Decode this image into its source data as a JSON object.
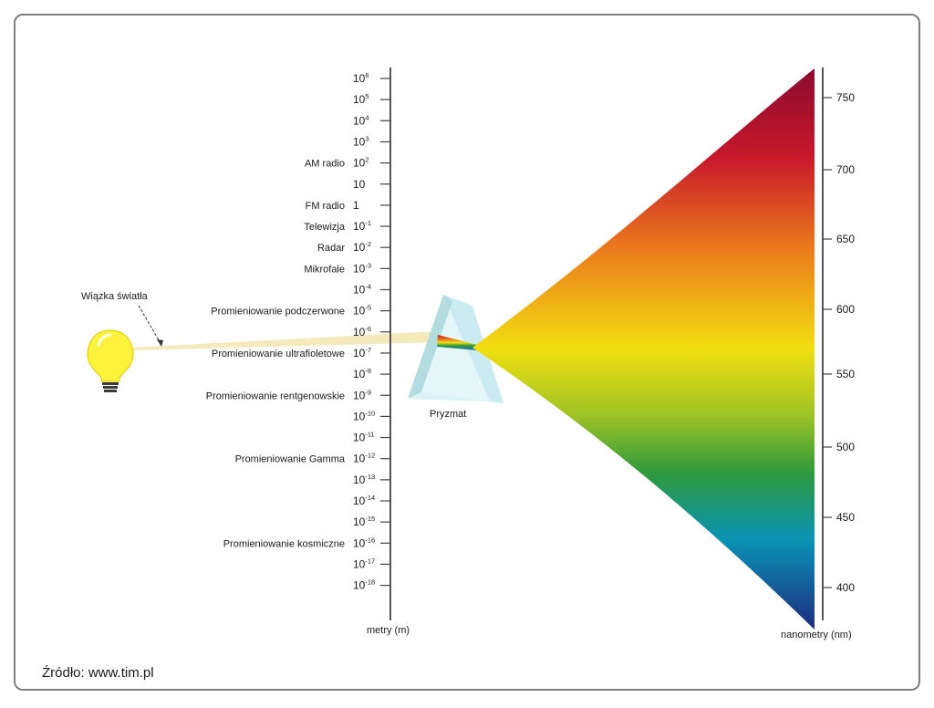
{
  "diagram": {
    "beam_label": "Wiązka światła",
    "prism_label": "Pryzmat",
    "source_text": "Źródło: www.tim.pl",
    "colors": {
      "frame": "#7f7f7f",
      "bulb": "#fff23a",
      "beam": "#f2e6b0",
      "prism": "#bfe8ee",
      "spectrum_red": "#8b0a2e",
      "spectrum_yellow": "#f2df10",
      "spectrum_green": "#2f9a3c",
      "spectrum_cyan": "#0a93b5",
      "spectrum_blue": "#1e2c80"
    }
  },
  "meters_axis": {
    "title": "metry (m)",
    "ticks": [
      {
        "base": "10",
        "exp": "6"
      },
      {
        "base": "10",
        "exp": "5"
      },
      {
        "base": "10",
        "exp": "4"
      },
      {
        "base": "10",
        "exp": "3"
      },
      {
        "base": "10",
        "exp": "2"
      },
      {
        "base": "10",
        "exp": ""
      },
      {
        "base": "1",
        "exp": ""
      },
      {
        "base": "10",
        "exp": "-1"
      },
      {
        "base": "10",
        "exp": "-2"
      },
      {
        "base": "10",
        "exp": "-3"
      },
      {
        "base": "10",
        "exp": "-4"
      },
      {
        "base": "10",
        "exp": "-5"
      },
      {
        "base": "10",
        "exp": "-6"
      },
      {
        "base": "10",
        "exp": "-7"
      },
      {
        "base": "10",
        "exp": "-8"
      },
      {
        "base": "10",
        "exp": "-9"
      },
      {
        "base": "10",
        "exp": "-10"
      },
      {
        "base": "10",
        "exp": "-11"
      },
      {
        "base": "10",
        "exp": "-12"
      },
      {
        "base": "10",
        "exp": "-13"
      },
      {
        "base": "10",
        "exp": "-14"
      },
      {
        "base": "10",
        "exp": "-15"
      },
      {
        "base": "10",
        "exp": "-16"
      },
      {
        "base": "10",
        "exp": "-17"
      },
      {
        "base": "10",
        "exp": "-18"
      }
    ],
    "labels": [
      {
        "text": "AM radio",
        "tick_index": 4
      },
      {
        "text": "FM radio",
        "tick_index": 6
      },
      {
        "text": "Telewizja",
        "tick_index": 7
      },
      {
        "text": "Radar",
        "tick_index": 8
      },
      {
        "text": "Mikrofale",
        "tick_index": 9
      },
      {
        "text": "Promieniowanie podczerwone",
        "tick_index": 11
      },
      {
        "text": "Promieniowanie ultrafioletowe",
        "tick_index": 13
      },
      {
        "text": "Promieniowanie rentgenowskie",
        "tick_index": 15
      },
      {
        "text": "Promieniowanie Gamma",
        "tick_index": 18
      },
      {
        "text": "Promieniowanie kosmiczne",
        "tick_index": 22
      }
    ]
  },
  "nm_axis": {
    "title": "nanometry (nm)",
    "ticks": [
      "750",
      "700",
      "650",
      "600",
      "550",
      "500",
      "450",
      "400"
    ]
  }
}
